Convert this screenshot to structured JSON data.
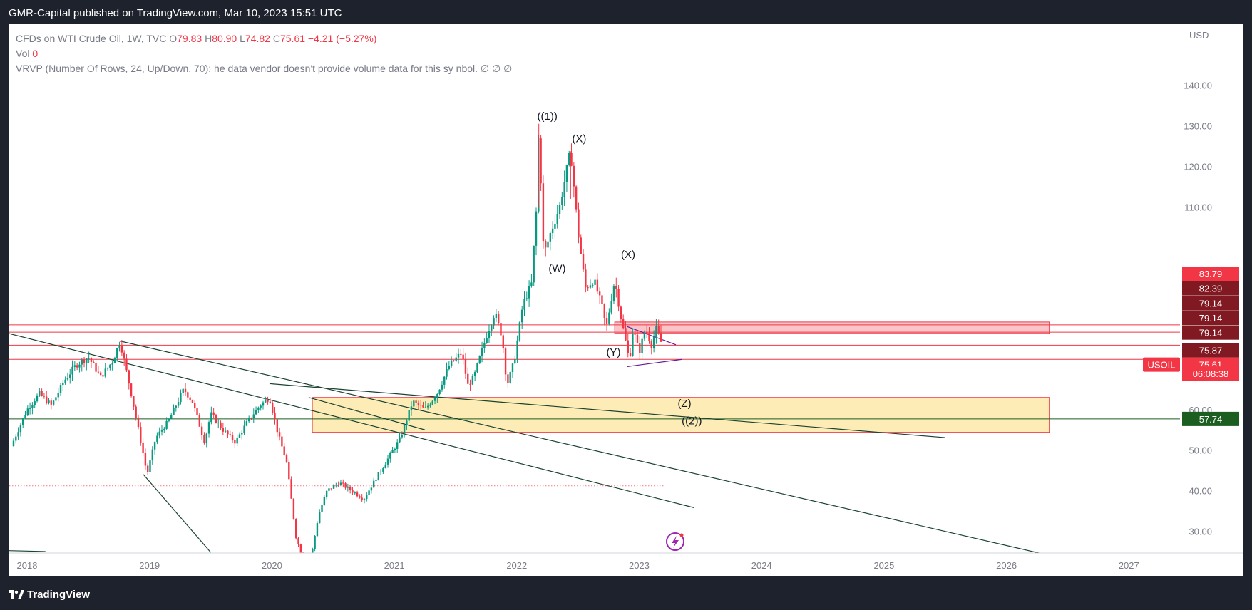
{
  "header": {
    "publisher": "GMR-Capital published on TradingView.com, Mar 10, 2023 15:51 UTC"
  },
  "legend": {
    "symbol": "CFDs on WTI Crude Oil, 1W, TVC",
    "o_label": "O",
    "o_value": "79.83",
    "h_label": "H",
    "h_value": "80.90",
    "l_label": "L",
    "l_value": "74.82",
    "c_label": "C",
    "c_value": "75.61",
    "change": "−4.21 (−5.27%)",
    "vol_label": "Vol",
    "vol_value": "0",
    "vrvp": "VRVP (Number Of Rows, 24, Up/Down, 70):  he data vendor doesn't provide volume data for this sy nbol.  ∅  ∅  ∅"
  },
  "footer": {
    "brand": "TradingView"
  },
  "chart_data": {
    "type": "candlestick",
    "symbol": "CFDs on WTI Crude Oil, 1W, TVC",
    "currency": "USD",
    "ylim": [
      25,
      152
    ],
    "y_ticks": [
      30,
      40,
      50,
      60,
      70,
      80,
      90,
      100,
      110,
      120,
      130,
      140
    ],
    "y_tick_labels": [
      "30.00",
      "40.00",
      "50.00",
      "60.00",
      "",
      "",
      "",
      "",
      "110.00",
      "120.00",
      "130.00",
      "140.00"
    ],
    "x_range": [
      "2017-09",
      "2027-07"
    ],
    "x_ticks": [
      {
        "label": "2018",
        "date": 2018.0
      },
      {
        "label": "2019",
        "date": 2019.0
      },
      {
        "label": "2020",
        "date": 2020.0
      },
      {
        "label": "2021",
        "date": 2021.0
      },
      {
        "label": "2022",
        "date": 2022.0
      },
      {
        "label": "2023",
        "date": 2023.0
      },
      {
        "label": "2024",
        "date": 2024.0
      },
      {
        "label": "2025",
        "date": 2025.0
      },
      {
        "label": "2026",
        "date": 2026.0
      },
      {
        "label": "2027",
        "date": 2027.0
      }
    ],
    "price_path": [
      [
        2017.87,
        51
      ],
      [
        2018.0,
        60
      ],
      [
        2018.1,
        64
      ],
      [
        2018.2,
        61
      ],
      [
        2018.3,
        67
      ],
      [
        2018.4,
        71
      ],
      [
        2018.5,
        73
      ],
      [
        2018.6,
        68
      ],
      [
        2018.7,
        72
      ],
      [
        2018.76,
        76.9
      ],
      [
        2018.85,
        64
      ],
      [
        2018.93,
        52
      ],
      [
        2018.98,
        44
      ],
      [
        2019.05,
        53
      ],
      [
        2019.15,
        57
      ],
      [
        2019.28,
        65
      ],
      [
        2019.35,
        62
      ],
      [
        2019.45,
        52
      ],
      [
        2019.5,
        59
      ],
      [
        2019.6,
        55
      ],
      [
        2019.7,
        52
      ],
      [
        2019.8,
        57
      ],
      [
        2019.9,
        61
      ],
      [
        2019.98,
        63
      ],
      [
        2020.05,
        54
      ],
      [
        2020.12,
        47
      ],
      [
        2020.2,
        28
      ],
      [
        2020.3,
        20
      ],
      [
        2020.38,
        34
      ],
      [
        2020.45,
        40
      ],
      [
        2020.55,
        42
      ],
      [
        2020.65,
        40
      ],
      [
        2020.75,
        38
      ],
      [
        2020.85,
        43
      ],
      [
        2020.95,
        48
      ],
      [
        2021.05,
        53
      ],
      [
        2021.15,
        62
      ],
      [
        2021.25,
        60
      ],
      [
        2021.35,
        64
      ],
      [
        2021.45,
        71
      ],
      [
        2021.55,
        74
      ],
      [
        2021.6,
        66
      ],
      [
        2021.65,
        68
      ],
      [
        2021.75,
        78
      ],
      [
        2021.82,
        84
      ],
      [
        2021.88,
        78
      ],
      [
        2021.92,
        66
      ],
      [
        2021.98,
        72
      ],
      [
        2022.05,
        86
      ],
      [
        2022.12,
        91
      ],
      [
        2022.17,
        114
      ],
      [
        2022.18,
        130.5
      ],
      [
        2022.22,
        98
      ],
      [
        2022.28,
        104
      ],
      [
        2022.35,
        110
      ],
      [
        2022.4,
        118
      ],
      [
        2022.44,
        123.7
      ],
      [
        2022.5,
        104
      ],
      [
        2022.56,
        90
      ],
      [
        2022.63,
        92
      ],
      [
        2022.7,
        85
      ],
      [
        2022.73,
        80
      ],
      [
        2022.8,
        92
      ],
      [
        2022.85,
        83
      ],
      [
        2022.92,
        72
      ],
      [
        2022.95,
        80
      ],
      [
        2023.0,
        74
      ],
      [
        2023.05,
        80
      ],
      [
        2023.1,
        76
      ],
      [
        2023.14,
        80
      ],
      [
        2023.19,
        75.6
      ]
    ],
    "wave_labels": [
      {
        "text": "((1))",
        "date": 2022.25,
        "price": 131.5
      },
      {
        "text": "(X)",
        "date": 2022.51,
        "price": 126
      },
      {
        "text": "(W)",
        "date": 2022.33,
        "price": 94
      },
      {
        "text": "(X)",
        "date": 2022.91,
        "price": 97.4
      },
      {
        "text": "(Y)",
        "date": 2022.79,
        "price": 73.3
      },
      {
        "text": "(Z)",
        "date": 2023.37,
        "price": 60.7
      },
      {
        "text": "((2))",
        "date": 2023.43,
        "price": 56.4
      }
    ],
    "price_labels": [
      {
        "text": "83.79",
        "price": 93.5,
        "color": "#f23645"
      },
      {
        "text": "82.39",
        "price": 89.9,
        "color": "#801922"
      },
      {
        "text": "79.14",
        "price": 86.2,
        "color": "#801922"
      },
      {
        "text": "79.14",
        "price": 82.6,
        "color": "#801922"
      },
      {
        "text": "79.14",
        "price": 79.0,
        "color": "#801922"
      },
      {
        "text": "75.87",
        "price": 74.6,
        "color": "#801922"
      },
      {
        "text": "75.61",
        "price": 71.1,
        "color": "#f23645"
      },
      {
        "text": "06:08:38",
        "price": 68.9,
        "color": "#f23645"
      },
      {
        "text": "57.74",
        "price": 57.7,
        "color": "#1b5e20"
      }
    ],
    "symbol_badge": {
      "text": "USOIL",
      "price": 71.1
    },
    "horizontal_lines": [
      {
        "price": 80.9,
        "color": "#f23645"
      },
      {
        "price": 79.1,
        "color": "#f23645"
      },
      {
        "price": 75.9,
        "color": "#f23645"
      },
      {
        "price": 72.4,
        "color": "#f23645"
      },
      {
        "price": 72.0,
        "color": "#1b5e20"
      },
      {
        "price": 57.7,
        "color": "#1b5e20"
      }
    ],
    "zones": [
      {
        "from_date": 2022.8,
        "to_date": 2026.35,
        "low": 78.8,
        "high": 81.6,
        "color": "#f8bbc0",
        "border": "#f23645"
      },
      {
        "from_date": 2020.33,
        "to_date": 2026.35,
        "low": 54.4,
        "high": 63.0,
        "color": "#fde9a9",
        "border": "#f23645"
      }
    ],
    "trend_lines": [
      {
        "from": [
          2017.6,
          80.7
        ],
        "to": [
          2023.45,
          35.8
        ],
        "color": "#1b4332"
      },
      {
        "from": [
          2018.76,
          76.9
        ],
        "to": [
          2026.3,
          24.4
        ],
        "color": "#1b4332"
      },
      {
        "from": [
          2019.98,
          66.4
        ],
        "to": [
          2025.5,
          53.1
        ],
        "color": "#1b4332"
      },
      {
        "from": [
          2020.3,
          63.0
        ],
        "to": [
          2021.25,
          55.0
        ],
        "color": "#1b4332"
      },
      {
        "from": [
          2018.95,
          44.0
        ],
        "to": [
          2019.5,
          24.8
        ],
        "color": "#1b4332"
      },
      {
        "from": [
          2017.6,
          25.4
        ],
        "to": [
          2018.15,
          25.0
        ],
        "color": "#1b4332"
      },
      {
        "from": [
          2022.9,
          80.5
        ],
        "to": [
          2023.3,
          76.0
        ],
        "color": "#6a1b9a"
      },
      {
        "from": [
          2022.9,
          70.6
        ],
        "to": [
          2023.35,
          72.4
        ],
        "color": "#6a1b9a"
      }
    ],
    "dotted_line": {
      "price": 41.2,
      "from_date": 2017.6,
      "to_date": 2023.2,
      "color": "#f23645"
    }
  }
}
